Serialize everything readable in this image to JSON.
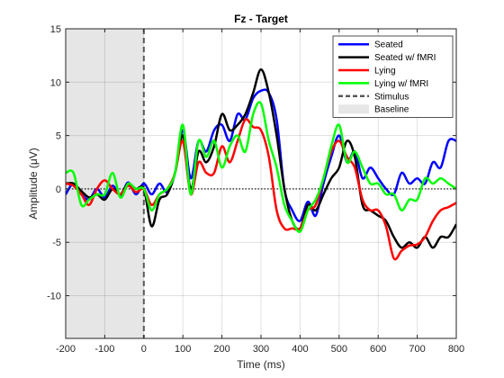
{
  "chart_data": {
    "type": "line",
    "title": "Fz - Target",
    "xlabel": "Time (ms)",
    "ylabel": "Amplitude (μV)",
    "xlim": [
      -200,
      800
    ],
    "ylim": [
      -14,
      15
    ],
    "xticks": [
      -200,
      -100,
      0,
      100,
      200,
      300,
      400,
      500,
      600,
      700,
      800
    ],
    "yticks": [
      -10,
      -5,
      0,
      5,
      10,
      15
    ],
    "grid": true,
    "legend_position": "top-right",
    "baseline": {
      "label": "Baseline",
      "range": [
        -200,
        0
      ],
      "color": "#e6e6e6"
    },
    "stimulus": {
      "label": "Stimulus",
      "x": 0,
      "color": "#595959"
    },
    "zero_line": true,
    "x": [
      -200,
      -180,
      -160,
      -140,
      -120,
      -100,
      -80,
      -60,
      -40,
      -20,
      0,
      20,
      40,
      60,
      80,
      100,
      120,
      140,
      160,
      180,
      200,
      220,
      240,
      260,
      280,
      300,
      320,
      340,
      360,
      380,
      400,
      420,
      440,
      460,
      480,
      500,
      520,
      540,
      560,
      580,
      600,
      620,
      640,
      660,
      680,
      700,
      720,
      740,
      760,
      780,
      800
    ],
    "series": [
      {
        "name": "Seated",
        "color": "#0000ff",
        "values": [
          -0.5,
          0.5,
          -0.5,
          -1,
          0,
          -0.8,
          0.3,
          -0.6,
          0.6,
          -0.5,
          0.5,
          -0.5,
          0.5,
          -0.3,
          1.5,
          5.5,
          1,
          4.5,
          3.5,
          5.5,
          6,
          4.5,
          7,
          6.5,
          8.5,
          9.2,
          9,
          6.5,
          0,
          -2,
          -3,
          -1.2,
          -2.5,
          0.5,
          3,
          5,
          2.5,
          3.5,
          1,
          2,
          1,
          0,
          -0.5,
          1.5,
          0.5,
          1,
          0.5,
          2.5,
          2,
          4.5,
          4.5
        ]
      },
      {
        "name": "Seated w/ fMRI",
        "color": "#000000",
        "values": [
          0.5,
          0.5,
          -0.2,
          -0.8,
          -0.5,
          -1,
          0,
          -0.5,
          0.5,
          0,
          0,
          -3.5,
          -1,
          -0.5,
          1.5,
          5,
          0,
          3.5,
          2.5,
          4,
          7,
          5.5,
          6,
          7,
          9,
          11.2,
          9,
          5,
          0,
          -3,
          -3.7,
          -1.5,
          -2,
          -0.5,
          1,
          2,
          4.5,
          3,
          -1.5,
          -2,
          -2.5,
          -3,
          -4.5,
          -5.5,
          -5,
          -5.5,
          -4.5,
          -5.5,
          -4.5,
          -4.5,
          -3.3
        ]
      },
      {
        "name": "Lying",
        "color": "#ff0000",
        "values": [
          0.5,
          0.3,
          -0.5,
          -1.5,
          0,
          0.8,
          0,
          -0.5,
          0.3,
          -0.3,
          0,
          -1.5,
          -0.5,
          0,
          1.5,
          4.5,
          -0.5,
          2.5,
          1.5,
          1.5,
          4,
          2.5,
          4.5,
          6.5,
          5.8,
          5.5,
          3,
          -2,
          -3.7,
          -3.7,
          -3.7,
          -2,
          -1.5,
          1,
          3.5,
          4.5,
          3,
          2,
          -1,
          -2,
          -2,
          -3.5,
          -6.5,
          -5.8,
          -5.3,
          -5.2,
          -4.5,
          -3,
          -2,
          -1.7,
          -1.3
        ]
      },
      {
        "name": "Lying w/ fMRI",
        "color": "#00ff00",
        "values": [
          1.5,
          1.5,
          -1.5,
          -1,
          -0.5,
          -0.5,
          1.5,
          -0.8,
          0.5,
          0,
          0,
          -2,
          -0.5,
          0,
          1.5,
          6,
          -0.5,
          4.5,
          3,
          4.5,
          2,
          4,
          5,
          3.5,
          7,
          8,
          4.5,
          2,
          -1.5,
          -3,
          -4,
          -2,
          -1,
          1,
          4,
          6,
          2.5,
          3.5,
          2,
          0.5,
          0.5,
          -0.5,
          -0.5,
          -2,
          -1,
          -1,
          1,
          0.5,
          1,
          0.5,
          0
        ]
      }
    ]
  }
}
